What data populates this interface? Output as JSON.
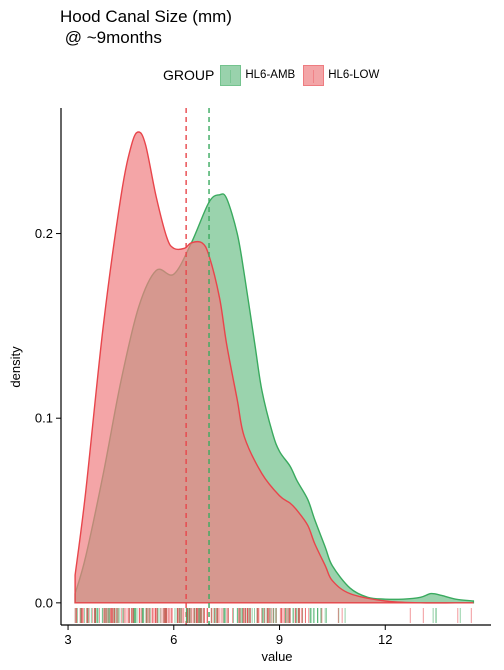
{
  "chart_data": {
    "type": "area",
    "title": "Hood Canal Size (mm)\n @ ~9months",
    "xlabel": "value",
    "ylabel": "density",
    "xlim": [
      2.8,
      15.0
    ],
    "ylim": [
      -0.012,
      0.268
    ],
    "xticks": [
      3,
      6,
      9,
      12
    ],
    "xtick_labels": [
      "3",
      "6",
      "9",
      "12"
    ],
    "yticks": [
      0.0,
      0.1,
      0.2
    ],
    "ytick_labels": [
      "0.0",
      "0.1",
      "0.2"
    ],
    "grid": false,
    "legend": {
      "title": "GROUP",
      "placement": "top"
    },
    "series": [
      {
        "name": "HL6-AMB",
        "color": "#3aaa5f",
        "fill": "#6fc08a",
        "fill_opacity": 0.7,
        "mean": 7.0,
        "x": [
          3.2,
          3.5,
          4.0,
          4.5,
          5.0,
          5.5,
          6.0,
          6.5,
          7.0,
          7.3,
          7.5,
          7.8,
          8.0,
          8.3,
          8.5,
          8.8,
          9.0,
          9.3,
          9.5,
          9.8,
          10.0,
          10.3,
          10.5,
          11.0,
          11.5,
          12.0,
          12.5,
          13.0,
          13.3,
          13.6,
          14.0,
          14.5
        ],
        "y": [
          0.005,
          0.025,
          0.07,
          0.12,
          0.16,
          0.18,
          0.178,
          0.195,
          0.217,
          0.221,
          0.219,
          0.2,
          0.178,
          0.14,
          0.115,
          0.092,
          0.082,
          0.074,
          0.066,
          0.056,
          0.045,
          0.03,
          0.02,
          0.008,
          0.003,
          0.002,
          0.002,
          0.003,
          0.005,
          0.004,
          0.002,
          0.001
        ]
      },
      {
        "name": "HL6-LOW",
        "color": "#e8454b",
        "fill": "#ef7f82",
        "fill_opacity": 0.7,
        "mean": 6.35,
        "x": [
          3.2,
          3.5,
          4.0,
          4.5,
          4.8,
          5.0,
          5.2,
          5.5,
          5.8,
          6.0,
          6.3,
          6.5,
          6.8,
          7.0,
          7.3,
          7.5,
          7.8,
          8.0,
          8.5,
          9.0,
          9.3,
          9.5,
          9.8,
          10.0,
          10.3,
          10.5,
          11.0,
          12.0,
          13.0,
          14.0,
          14.5
        ],
        "y": [
          0.015,
          0.06,
          0.15,
          0.22,
          0.248,
          0.255,
          0.248,
          0.22,
          0.198,
          0.192,
          0.192,
          0.195,
          0.195,
          0.188,
          0.165,
          0.14,
          0.11,
          0.09,
          0.07,
          0.058,
          0.054,
          0.05,
          0.042,
          0.032,
          0.02,
          0.012,
          0.005,
          0.001,
          0.0,
          0.0,
          0.0
        ]
      }
    ]
  }
}
